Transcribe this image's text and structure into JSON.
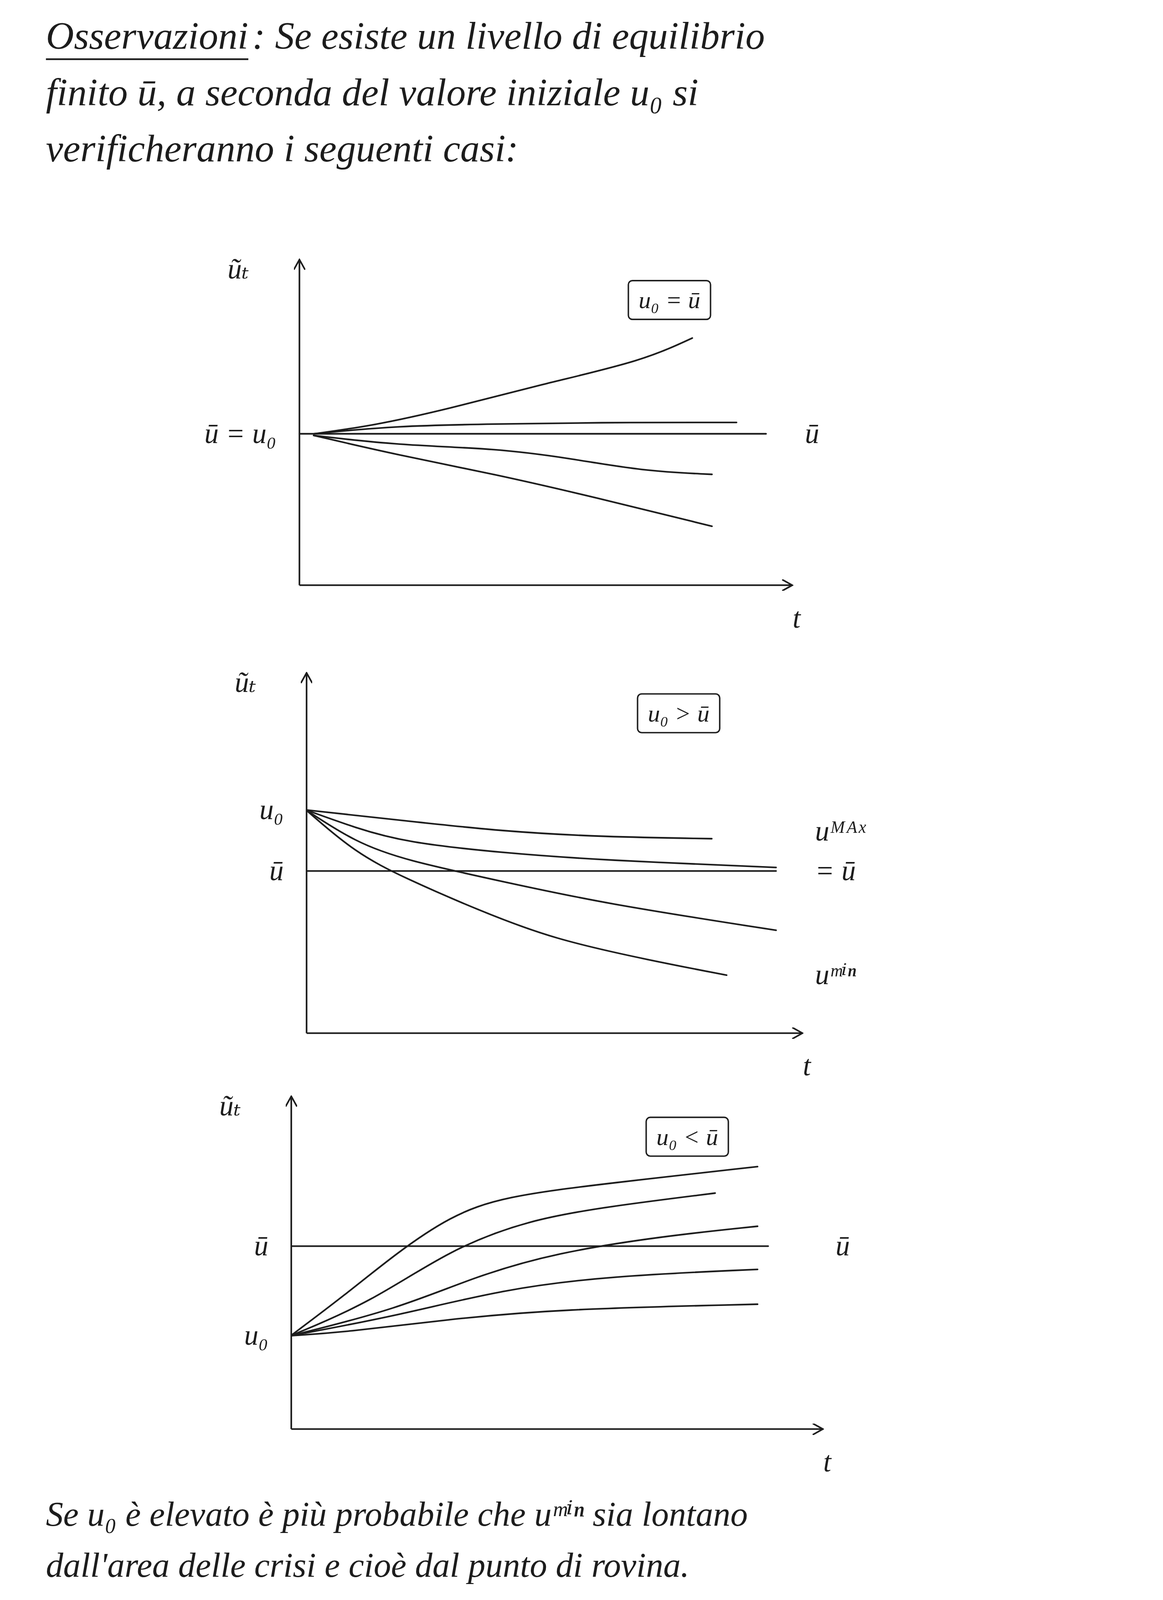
{
  "document": {
    "title": "Osservazioni",
    "header_lines": [
      ": Se esiste un livello di equilibrio",
      "finito ū, a seconda del valore iniziale u₀ si",
      "verificheranno i seguenti casi:"
    ],
    "footer_lines": [
      "Se u₀ è elevato è più probabile che uᵐⁱⁿ sia lontano",
      "dall'area delle crisi e cioè dal punto di rovina."
    ]
  },
  "chart_data": [
    {
      "type": "line",
      "y_label": "ũₜ",
      "x_label": "t",
      "box_label": "u₀ = ū",
      "xlim": [
        0,
        10
      ],
      "ylim": [
        0,
        10
      ],
      "tick_labels": false,
      "series": [
        {
          "x": [
            0,
            9.5
          ],
          "values": [
            4.65,
            4.65
          ]
        },
        {
          "x": [
            0.3,
            1.5,
            3,
            5,
            7,
            8
          ],
          "values": [
            4.65,
            4.9,
            5.4,
            6.2,
            6.9,
            7.6
          ]
        },
        {
          "x": [
            0.3,
            2,
            4,
            6,
            8.9
          ],
          "values": [
            4.65,
            4.9,
            4.95,
            5.0,
            5.0
          ]
        },
        {
          "x": [
            0.3,
            2,
            4,
            5.5,
            7,
            8.4
          ],
          "values": [
            4.6,
            4.3,
            4.2,
            3.9,
            3.5,
            3.4
          ]
        },
        {
          "x": [
            0.3,
            2,
            4,
            6,
            8.4
          ],
          "values": [
            4.6,
            4.0,
            3.4,
            2.7,
            1.8
          ]
        }
      ],
      "annotations": [
        {
          "text": "ū = u₀",
          "y": 4.65,
          "side": "left"
        },
        {
          "text": "ū",
          "y": 4.65,
          "side": "right"
        }
      ]
    },
    {
      "type": "line",
      "y_label": "ũₜ",
      "x_label": "t",
      "box_label": "u₀ > ū",
      "xlim": [
        0,
        10
      ],
      "ylim": [
        0,
        10
      ],
      "tick_labels": false,
      "series": [
        {
          "x": [
            0,
            9.5
          ],
          "values": [
            4.5,
            4.5
          ]
        },
        {
          "x": [
            0,
            2,
            4,
            6,
            8.2
          ],
          "values": [
            6.2,
            5.9,
            5.6,
            5.45,
            5.4
          ]
        },
        {
          "x": [
            0,
            1,
            2,
            4,
            6,
            9.5
          ],
          "values": [
            6.2,
            5.7,
            5.3,
            5.0,
            4.8,
            4.6
          ]
        },
        {
          "x": [
            0,
            1,
            2,
            4,
            6,
            9.5
          ],
          "values": [
            6.2,
            5.3,
            4.8,
            4.2,
            3.6,
            2.85
          ]
        },
        {
          "x": [
            0,
            1,
            2,
            3.5,
            5,
            7,
            8.5
          ],
          "values": [
            6.2,
            5.0,
            4.3,
            3.4,
            2.6,
            2.0,
            1.6
          ]
        }
      ],
      "annotations": [
        {
          "text": "u₀",
          "y": 6.2,
          "side": "left"
        },
        {
          "text": "ū",
          "y": 4.5,
          "side": "left"
        },
        {
          "text": "uᴹᴬˣ",
          "y": 5.6,
          "side": "right"
        },
        {
          "text": "= ū",
          "y": 4.5,
          "side": "right"
        },
        {
          "text": "uᵐⁱⁿ",
          "y": 1.6,
          "side": "right"
        }
      ]
    },
    {
      "type": "line",
      "y_label": "ũₜ",
      "x_label": "t",
      "box_label": "u₀ < ū",
      "xlim": [
        0,
        10
      ],
      "ylim": [
        0,
        10
      ],
      "tick_labels": false,
      "series": [
        {
          "x": [
            0,
            9
          ],
          "values": [
            5.5,
            5.5
          ]
        },
        {
          "x": [
            0,
            1,
            2,
            3,
            4,
            6,
            8.8
          ],
          "values": [
            2.8,
            4.0,
            5.3,
            6.4,
            7.0,
            7.4,
            7.9
          ]
        },
        {
          "x": [
            0,
            1.5,
            3,
            4.5,
            6,
            8
          ],
          "values": [
            2.8,
            3.8,
            5.4,
            6.3,
            6.7,
            7.1
          ]
        },
        {
          "x": [
            0,
            2,
            3.5,
            5,
            7,
            8.8
          ],
          "values": [
            2.8,
            3.6,
            4.6,
            5.3,
            5.8,
            6.1
          ]
        },
        {
          "x": [
            0,
            2,
            4,
            6,
            8.8
          ],
          "values": [
            2.8,
            3.4,
            4.2,
            4.6,
            4.8
          ]
        },
        {
          "x": [
            0,
            1,
            3,
            5,
            8.8
          ],
          "values": [
            2.8,
            2.9,
            3.3,
            3.6,
            3.75
          ]
        }
      ],
      "annotations": [
        {
          "text": "ū",
          "y": 5.5,
          "side": "left"
        },
        {
          "text": "u₀",
          "y": 2.8,
          "side": "left"
        },
        {
          "text": "ū",
          "y": 5.5,
          "side": "right"
        }
      ]
    }
  ]
}
